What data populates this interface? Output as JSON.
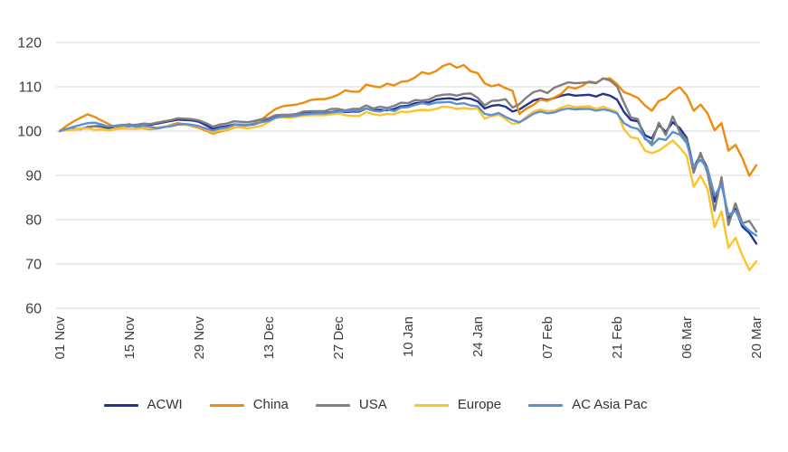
{
  "chart_data": {
    "type": "line",
    "title": "",
    "xlabel": "",
    "ylabel": "",
    "grid": true,
    "legend_position": "bottom",
    "y_ticks": [
      60,
      70,
      80,
      90,
      100,
      110,
      120
    ],
    "ylim": [
      56,
      125.5
    ],
    "x_tick_every": 10,
    "x_tick_labels": [
      "01 Nov",
      "15 Nov",
      "29 Nov",
      "13 Dec",
      "27 Dec",
      "10 Jan",
      "24 Jan",
      "07 Feb",
      "21 Feb",
      "06 Mar",
      "20 Mar"
    ],
    "x_description": "business days, 01 Nov to 20 Mar, rebased to 100",
    "series": [
      {
        "name": "ACWI",
        "color": "#243390",
        "values": [
          100.0,
          100.3,
          100.5,
          100.4,
          100.9,
          101.1,
          101.0,
          100.7,
          101.0,
          101.2,
          101.1,
          101.2,
          101.5,
          101.4,
          101.7,
          102.0,
          102.3,
          102.6,
          102.5,
          102.4,
          102.1,
          101.3,
          100.5,
          100.9,
          101.1,
          101.5,
          101.4,
          101.3,
          101.6,
          102.1,
          102.5,
          103.3,
          103.4,
          103.4,
          103.6,
          104.0,
          104.1,
          104.1,
          104.1,
          104.3,
          104.5,
          104.3,
          104.4,
          104.4,
          105.1,
          104.7,
          104.8,
          104.7,
          105.0,
          105.6,
          105.7,
          106.3,
          106.4,
          106.5,
          107.1,
          107.3,
          107.4,
          107.1,
          107.5,
          107.3,
          106.7,
          105.1,
          105.7,
          105.9,
          105.5,
          104.4,
          104.9,
          105.9,
          106.9,
          107.3,
          107.0,
          107.5,
          108.0,
          108.3,
          108.0,
          108.1,
          108.2,
          107.8,
          108.4,
          108.0,
          107.1,
          104.3,
          102.5,
          102.2,
          99.1,
          98.3,
          101.4,
          99.8,
          102.0,
          100.7,
          98.5,
          91.7,
          94.7,
          91.5,
          84.1,
          88.8,
          80.1,
          82.4,
          78.4,
          77.0,
          74.6
        ]
      },
      {
        "name": "China",
        "color": "#ee8c0d",
        "values": [
          100.0,
          101.2,
          102.2,
          103.0,
          103.8,
          103.2,
          102.4,
          101.6,
          100.9,
          101.1,
          101.6,
          100.9,
          100.6,
          100.4,
          100.6,
          100.9,
          101.4,
          101.8,
          101.5,
          101.1,
          100.7,
          100.1,
          99.4,
          99.9,
          100.2,
          100.8,
          101.0,
          101.3,
          101.8,
          102.6,
          103.9,
          105.0,
          105.6,
          105.8,
          106.0,
          106.4,
          107.0,
          107.2,
          107.2,
          107.6,
          108.2,
          109.2,
          108.9,
          108.9,
          110.5,
          110.1,
          109.9,
          110.7,
          110.3,
          111.1,
          111.3,
          112.1,
          113.3,
          112.9,
          113.5,
          114.7,
          115.2,
          114.3,
          114.9,
          113.5,
          113.1,
          110.8,
          110.1,
          110.5,
          109.7,
          109.1,
          103.9,
          105.1,
          105.9,
          107.1,
          106.8,
          107.6,
          108.4,
          110.0,
          109.6,
          110.2,
          111.2,
          110.9,
          111.8,
          111.9,
          110.6,
          108.8,
          108.2,
          107.5,
          105.8,
          104.6,
          106.8,
          107.4,
          109.0,
          109.9,
          108.1,
          104.6,
          106.0,
          104.0,
          100.2,
          101.8,
          95.6,
          96.9,
          93.9,
          89.9,
          92.3
        ]
      },
      {
        "name": "USA",
        "color": "#7f7f7f",
        "values": [
          100.0,
          100.4,
          100.5,
          100.5,
          100.8,
          101.1,
          101.2,
          101.0,
          101.2,
          101.4,
          101.4,
          101.4,
          101.7,
          101.6,
          101.9,
          102.2,
          102.5,
          102.9,
          102.8,
          102.7,
          102.4,
          101.8,
          101.0,
          101.5,
          101.7,
          102.2,
          102.1,
          102.0,
          102.3,
          102.7,
          102.9,
          103.6,
          103.7,
          103.7,
          103.9,
          104.4,
          104.5,
          104.5,
          104.5,
          105.0,
          105.0,
          104.7,
          105.0,
          105.0,
          105.8,
          105.1,
          105.5,
          105.2,
          105.7,
          106.4,
          106.3,
          107.0,
          106.9,
          107.1,
          107.9,
          108.2,
          108.3,
          108.0,
          108.4,
          108.5,
          107.5,
          105.8,
          106.8,
          106.9,
          107.2,
          105.3,
          106.1,
          107.6,
          108.8,
          109.2,
          108.6,
          109.8,
          110.4,
          111.0,
          110.8,
          110.9,
          111.0,
          110.8,
          111.9,
          111.4,
          110.1,
          106.4,
          103.1,
          102.7,
          98.2,
          97.4,
          101.9,
          99.1,
          103.3,
          99.8,
          98.1,
          90.6,
          95.1,
          90.5,
          82.0,
          89.6,
          78.8,
          83.7,
          79.2,
          79.7,
          77.3
        ]
      },
      {
        "name": "Europe",
        "color": "#fdc32a",
        "values": [
          100.0,
          100.2,
          100.3,
          100.5,
          100.6,
          100.3,
          100.4,
          100.2,
          100.4,
          100.6,
          100.5,
          100.5,
          100.7,
          100.6,
          100.8,
          101.0,
          101.2,
          101.5,
          101.4,
          101.3,
          101.0,
          100.4,
          99.7,
          100.2,
          100.3,
          100.9,
          100.8,
          100.6,
          100.9,
          101.2,
          102.0,
          103.0,
          103.1,
          103.0,
          103.2,
          103.5,
          103.6,
          103.6,
          103.6,
          103.8,
          104.0,
          103.6,
          103.4,
          103.4,
          104.3,
          103.8,
          103.6,
          103.9,
          103.8,
          104.4,
          104.3,
          104.6,
          104.8,
          104.7,
          105.0,
          105.5,
          105.4,
          105.0,
          105.2,
          105.0,
          105.1,
          102.8,
          103.4,
          103.7,
          102.7,
          101.6,
          101.9,
          103.2,
          104.4,
          104.9,
          104.5,
          104.6,
          105.3,
          105.8,
          105.4,
          105.5,
          105.6,
          105.0,
          105.5,
          104.9,
          104.3,
          100.4,
          98.6,
          98.3,
          95.6,
          95.0,
          95.6,
          96.7,
          97.9,
          96.3,
          94.4,
          87.4,
          89.9,
          86.9,
          78.3,
          81.9,
          73.7,
          75.9,
          71.9,
          68.6,
          70.6
        ]
      },
      {
        "name": "AC Asia Pac",
        "color": "#5b90d8",
        "values": [
          100.0,
          100.5,
          101.0,
          101.4,
          101.8,
          101.9,
          101.5,
          101.0,
          101.1,
          101.3,
          101.2,
          101.0,
          101.2,
          101.0,
          100.6,
          100.9,
          101.1,
          101.5,
          101.6,
          101.4,
          101.1,
          100.6,
          100.1,
          100.6,
          100.8,
          101.4,
          101.5,
          101.4,
          101.7,
          102.0,
          102.3,
          103.0,
          103.3,
          103.3,
          103.5,
          103.8,
          103.9,
          104.0,
          104.0,
          104.2,
          104.4,
          104.5,
          104.6,
          104.6,
          105.1,
          104.6,
          104.4,
          104.9,
          104.5,
          105.3,
          105.4,
          105.9,
          106.3,
          106.0,
          106.4,
          106.5,
          106.6,
          106.1,
          106.3,
          105.8,
          105.6,
          103.9,
          103.6,
          104.1,
          103.2,
          102.5,
          102.0,
          102.9,
          103.9,
          104.4,
          104.0,
          104.2,
          104.8,
          105.1,
          104.9,
          105.0,
          105.0,
          104.6,
          104.9,
          104.6,
          104.0,
          101.8,
          100.9,
          100.5,
          98.5,
          96.8,
          98.3,
          98.0,
          99.8,
          99.2,
          97.3,
          92.0,
          93.5,
          91.5,
          85.5,
          87.8,
          81.1,
          82.0,
          79.0,
          77.5,
          76.4
        ]
      }
    ]
  },
  "styles": {
    "background": "#ffffff",
    "grid_color": "#d9d9d9",
    "axis_label_color": "#3c3f44",
    "legend_text_color": "#333333",
    "line_width": 2.4
  }
}
